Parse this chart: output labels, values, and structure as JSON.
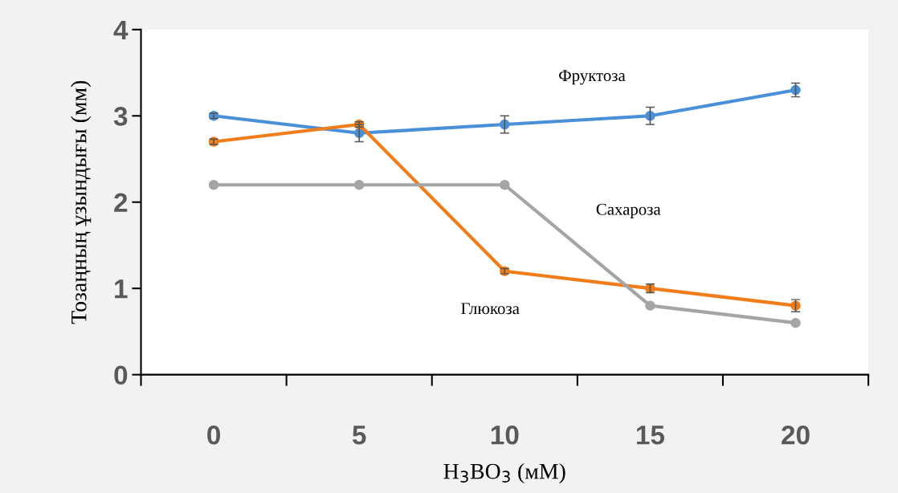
{
  "chart_data": {
    "type": "line",
    "xlabel": "H$_{3}$BO$_{3}$ (мМ)",
    "ylabel": "Тозаңның ұзындығы (мм)",
    "categories": [
      "0",
      "5",
      "10",
      "15",
      "20"
    ],
    "ylim": [
      0,
      4
    ],
    "yticks": [
      0,
      1,
      2,
      3,
      4
    ],
    "grid": false,
    "legend": false,
    "marker": "circle",
    "line_style": "solid",
    "series": [
      {
        "name": "Фруктоза",
        "color": "#4a90d9",
        "values": [
          3.0,
          2.8,
          2.9,
          3.0,
          3.3
        ],
        "errors": [
          0.03,
          0.1,
          0.1,
          0.1,
          0.08
        ]
      },
      {
        "name": "Глюкоза",
        "color": "#f07d1a",
        "values": [
          2.7,
          2.9,
          1.2,
          1.0,
          0.8
        ],
        "errors": [
          0.03,
          0.03,
          0.03,
          0.05,
          0.07
        ]
      },
      {
        "name": "Сахароза",
        "color": "#a5a5a5",
        "values": [
          2.2,
          2.2,
          2.2,
          0.8,
          0.6
        ]
      }
    ]
  }
}
